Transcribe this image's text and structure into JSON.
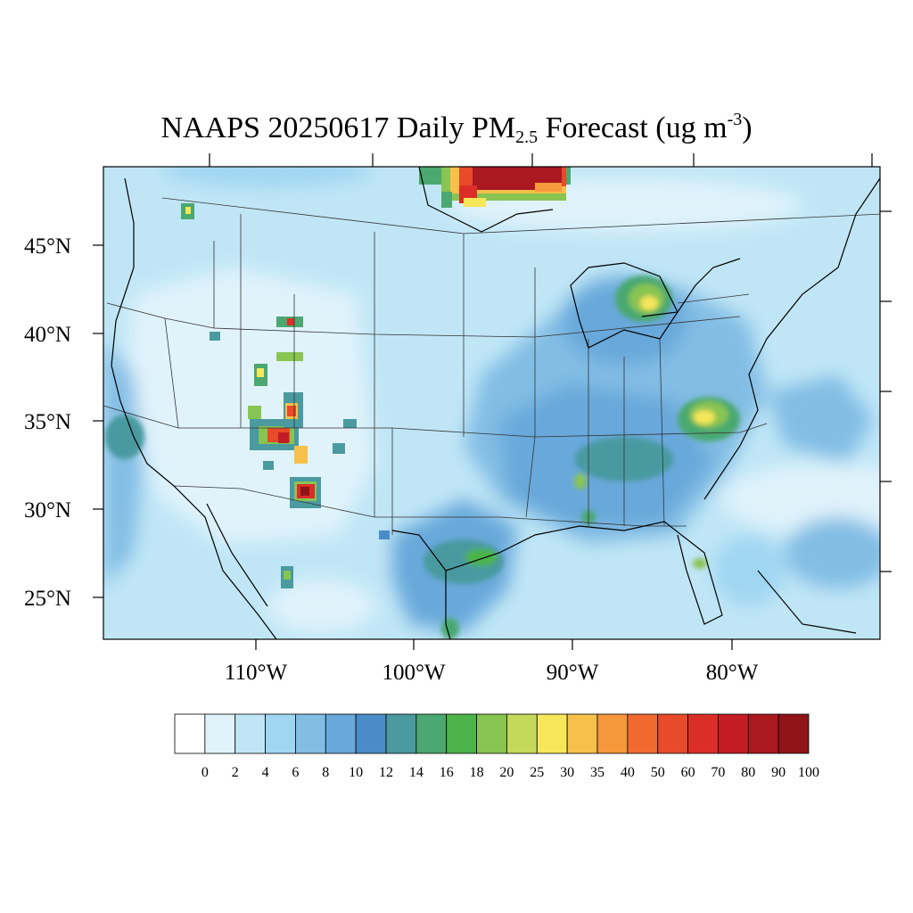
{
  "title": {
    "prefix": "NAAPS 20250617 Daily PM",
    "subscript": "2.5",
    "middle": " Forecast (ug m",
    "superscript": "-3",
    "suffix": ")"
  },
  "latitude_labels": [
    "45°N",
    "40°N",
    "35°N",
    "30°N",
    "25°N"
  ],
  "longitude_labels": [
    "110°W",
    "100°W",
    "90°W",
    "80°W"
  ],
  "colorbar": {
    "labels": [
      "0",
      "2",
      "4",
      "6",
      "8",
      "10",
      "12",
      "14",
      "16",
      "18",
      "20",
      "25",
      "30",
      "35",
      "40",
      "50",
      "60",
      "70",
      "80",
      "90",
      "100"
    ],
    "colors": [
      "#ffffff",
      "#e0f3fb",
      "#c0e6f6",
      "#a0d6f2",
      "#82bde4",
      "#68a8da",
      "#4a8cc8",
      "#4a9aa0",
      "#4aa870",
      "#4cb44a",
      "#88c452",
      "#c4d85a",
      "#f6e65a",
      "#f6c04a",
      "#f6983c",
      "#f06a30",
      "#e84a2a",
      "#dc2e28",
      "#c41c24",
      "#aa1820",
      "#8e1418"
    ]
  },
  "map": {
    "background_color": "#c0e6f6",
    "hotspots": [
      {
        "region": "Southern Manitoba/Ontario border smoke",
        "level": "100+"
      },
      {
        "region": "Southeast Arizona",
        "level": "90"
      },
      {
        "region": "Central Arizona",
        "level": "70"
      },
      {
        "region": "Northern Michigan",
        "level": "25"
      },
      {
        "region": "North Carolina",
        "level": "25"
      },
      {
        "region": "East Texas coast",
        "level": "18"
      }
    ]
  }
}
